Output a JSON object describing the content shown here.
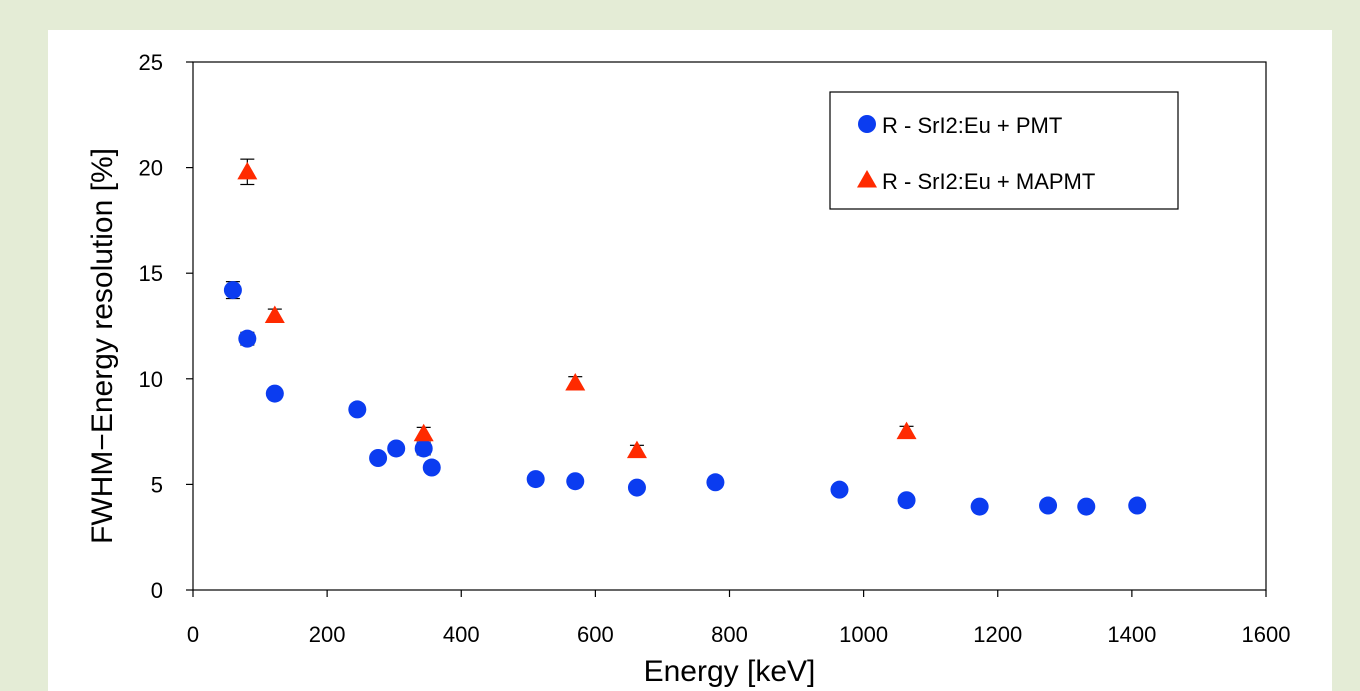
{
  "chart_data": {
    "type": "scatter",
    "title": "",
    "xlabel": "Energy [keV]",
    "ylabel": "FWHM−Energy resolution [%]",
    "xlim": [
      0,
      1600
    ],
    "ylim": [
      0,
      25
    ],
    "x_ticks": [
      0,
      200,
      400,
      600,
      800,
      1000,
      1200,
      1400,
      1600
    ],
    "y_ticks": [
      0,
      5,
      10,
      15,
      20,
      25
    ],
    "grid": false,
    "legend_position": "top-right",
    "series": [
      {
        "name": "R - SrI2:Eu + PMT",
        "marker": "circle",
        "color": "#0b3cf0",
        "points": [
          {
            "x": 59.5,
            "y": 14.2,
            "err": 0.4
          },
          {
            "x": 81,
            "y": 11.9,
            "err": 0.3
          },
          {
            "x": 122,
            "y": 9.3
          },
          {
            "x": 245,
            "y": 8.55
          },
          {
            "x": 276,
            "y": 6.25
          },
          {
            "x": 303,
            "y": 6.7
          },
          {
            "x": 344,
            "y": 6.7,
            "err": 0.3
          },
          {
            "x": 356,
            "y": 5.8
          },
          {
            "x": 511,
            "y": 5.25
          },
          {
            "x": 570,
            "y": 5.15
          },
          {
            "x": 662,
            "y": 4.85
          },
          {
            "x": 779,
            "y": 5.1
          },
          {
            "x": 964,
            "y": 4.75
          },
          {
            "x": 1064,
            "y": 4.25
          },
          {
            "x": 1173,
            "y": 3.95
          },
          {
            "x": 1275,
            "y": 4.0
          },
          {
            "x": 1332,
            "y": 3.95
          },
          {
            "x": 1408,
            "y": 4.0
          }
        ]
      },
      {
        "name": "R - SrI2:Eu + MAPMT",
        "marker": "triangle",
        "color": "#ff2a00",
        "points": [
          {
            "x": 81,
            "y": 19.8,
            "err": 0.6
          },
          {
            "x": 122,
            "y": 13.0,
            "err": 0.3
          },
          {
            "x": 344,
            "y": 7.4,
            "err": 0.3
          },
          {
            "x": 570,
            "y": 9.8,
            "err": 0.3
          },
          {
            "x": 662,
            "y": 6.6,
            "err": 0.25
          },
          {
            "x": 1064,
            "y": 7.5,
            "err": 0.25
          }
        ]
      }
    ]
  }
}
